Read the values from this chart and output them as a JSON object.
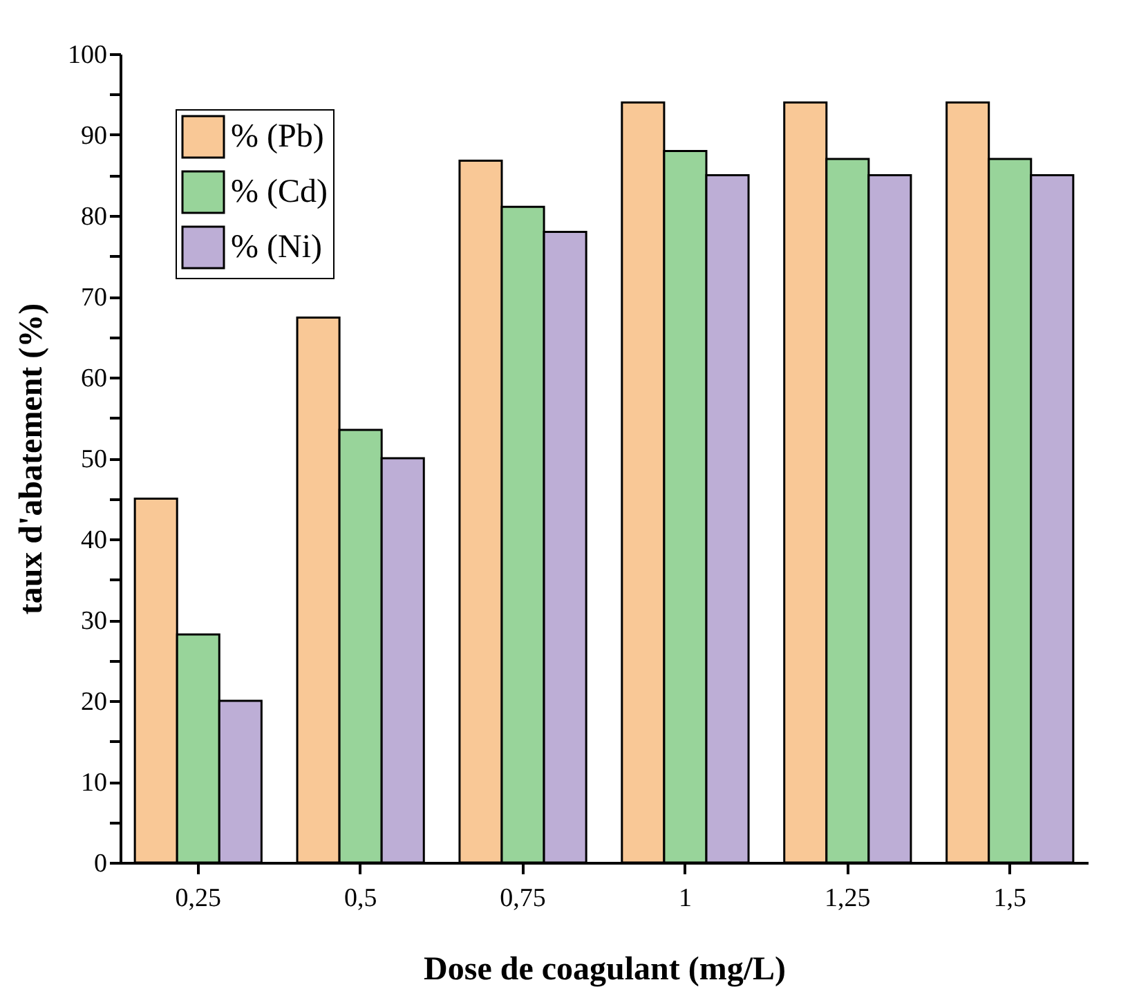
{
  "chart_data": {
    "type": "bar",
    "xlabel": "Dose de coagulant (mg/L)",
    "ylabel": "taux d'abatement (%)",
    "categories": [
      "0,25",
      "0,5",
      "0,75",
      "1",
      "1,25",
      "1,5"
    ],
    "series": [
      {
        "name": "% (Pb)",
        "color": "#f9c896",
        "values": [
          45,
          67.4,
          86.8,
          94,
          94,
          94
        ]
      },
      {
        "name": "% (Cd)",
        "color": "#98d49a",
        "values": [
          28.2,
          53.5,
          81.1,
          88,
          87,
          87
        ]
      },
      {
        "name": "% (Ni)",
        "color": "#bdaed6",
        "values": [
          20,
          50,
          78,
          85,
          85,
          85
        ]
      }
    ],
    "ylim": [
      0,
      100
    ],
    "yticks": [
      0,
      {
        "value": 5,
        "label": null
      },
      10,
      {
        "value": 15,
        "label": null
      },
      20,
      {
        "value": 25,
        "label": null
      },
      30,
      {
        "value": 35,
        "label": null
      },
      40,
      {
        "value": 45,
        "label": null
      },
      50,
      {
        "value": 55,
        "label": null
      },
      60,
      {
        "value": 65,
        "label": null
      },
      70,
      {
        "value": 75,
        "label": null
      },
      80,
      {
        "value": 85,
        "label": null
      },
      90,
      {
        "value": 95,
        "label": null
      },
      100
    ],
    "grid": false,
    "legend": "top left"
  }
}
